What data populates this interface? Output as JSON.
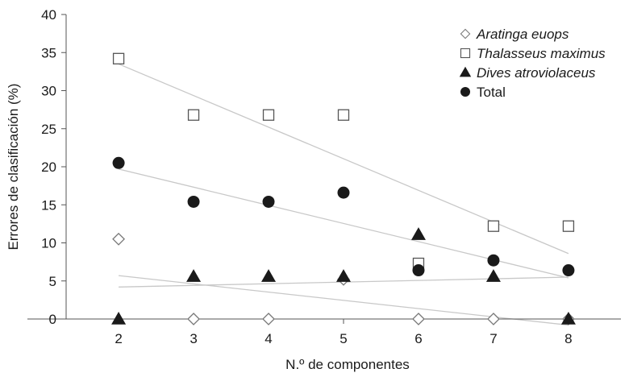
{
  "chart_data": {
    "type": "scatter",
    "xlabel": "N.º de componentes",
    "ylabel": "Errores de clasificación (%)",
    "xticks": [
      2,
      3,
      4,
      5,
      6,
      7,
      8
    ],
    "yticks": [
      "0",
      "5",
      "10",
      "15",
      "20",
      "25",
      "30",
      "35",
      "40"
    ],
    "xlim": [
      1.3,
      8.7
    ],
    "ylim": [
      0,
      40
    ],
    "grid": false,
    "legend_position": "top-right",
    "trendlines": true,
    "series": [
      {
        "name": "Aratinga euops",
        "marker": "diamond-open",
        "italic": true,
        "x": [
          2,
          3,
          4,
          5,
          6,
          7,
          8
        ],
        "y": [
          10.5,
          0,
          0,
          5.2,
          0,
          0,
          0
        ],
        "trend": {
          "x": [
            2,
            8
          ],
          "y": [
            5.7,
            -0.8
          ]
        }
      },
      {
        "name": "Thalasseus maximus",
        "marker": "square-open",
        "italic": true,
        "x": [
          2,
          3,
          4,
          5,
          6,
          7,
          8
        ],
        "y": [
          34.2,
          26.8,
          26.8,
          26.8,
          7.3,
          12.2,
          12.2
        ],
        "trend": {
          "x": [
            2,
            8
          ],
          "y": [
            33.5,
            8.6
          ]
        }
      },
      {
        "name": "Dives atroviolaceus",
        "marker": "triangle-filled",
        "italic": true,
        "x": [
          2,
          3,
          4,
          5,
          6,
          7,
          8
        ],
        "y": [
          0,
          5.6,
          5.6,
          5.6,
          11.1,
          5.6,
          0
        ],
        "trend": {
          "x": [
            2,
            8
          ],
          "y": [
            4.2,
            5.5
          ]
        }
      },
      {
        "name": "Total",
        "marker": "circle-filled",
        "italic": false,
        "x": [
          2,
          3,
          4,
          5,
          6,
          7,
          8
        ],
        "y": [
          20.5,
          15.4,
          15.4,
          16.6,
          6.4,
          7.7,
          6.4
        ],
        "trend": {
          "x": [
            2,
            8
          ],
          "y": [
            19.7,
            5.4
          ]
        }
      }
    ]
  }
}
